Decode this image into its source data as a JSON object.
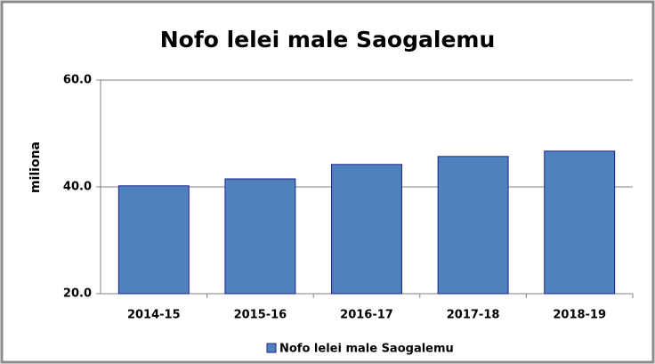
{
  "chart_data": {
    "type": "bar",
    "title": "Nofo lelei male Saogalemu",
    "y_label": "miliona",
    "categories": [
      "2014-15",
      "2015-16",
      "2016-17",
      "2017-18",
      "2018-19"
    ],
    "series": [
      {
        "name": "Nofo lelei male Saogalemu",
        "color": "#4f81bd",
        "values": [
          40.2,
          41.5,
          44.2,
          45.7,
          46.7
        ]
      }
    ],
    "ylim": [
      20,
      60
    ],
    "yticks": [
      {
        "value": 20,
        "label": "20.0"
      },
      {
        "value": 40,
        "label": "40.0"
      },
      {
        "value": 60,
        "label": "60.0"
      }
    ],
    "grid": true,
    "legend": "bottom"
  }
}
